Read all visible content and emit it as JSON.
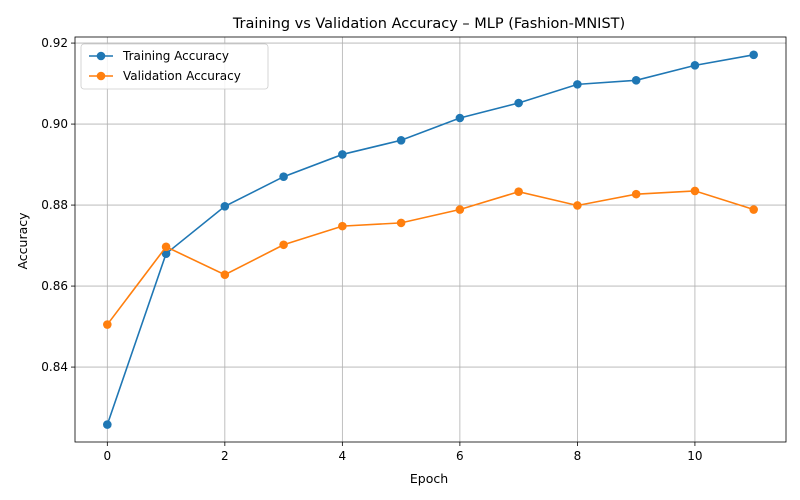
{
  "chart_data": {
    "type": "line",
    "title": "Training vs Validation Accuracy – MLP (Fashion-MNIST)",
    "xlabel": "Epoch",
    "ylabel": "Accuracy",
    "x": [
      0,
      1,
      2,
      3,
      4,
      5,
      6,
      7,
      8,
      9,
      10,
      11
    ],
    "xlim": [
      -0.55,
      11.55
    ],
    "ylim": [
      0.8215,
      0.9215
    ],
    "xticks": [
      0,
      2,
      4,
      6,
      8,
      10
    ],
    "yticks": [
      0.84,
      0.86,
      0.88,
      0.9,
      0.92
    ],
    "xtick_labels": [
      "0",
      "2",
      "4",
      "6",
      "8",
      "10"
    ],
    "ytick_labels": [
      "0.84",
      "0.86",
      "0.88",
      "0.90",
      "0.92"
    ],
    "grid": true,
    "legend_position": "top-left",
    "series": [
      {
        "name": "Training Accuracy",
        "color": "#1f77b4",
        "marker": "circle",
        "values": [
          0.8258,
          0.868,
          0.8797,
          0.887,
          0.8925,
          0.896,
          0.9015,
          0.9052,
          0.9098,
          0.9108,
          0.9145,
          0.9171
        ]
      },
      {
        "name": "Validation Accuracy",
        "color": "#ff7f0e",
        "marker": "circle",
        "values": [
          0.8505,
          0.8697,
          0.8628,
          0.8702,
          0.8748,
          0.8756,
          0.8789,
          0.8833,
          0.8799,
          0.8827,
          0.8835,
          0.8789
        ]
      }
    ]
  }
}
